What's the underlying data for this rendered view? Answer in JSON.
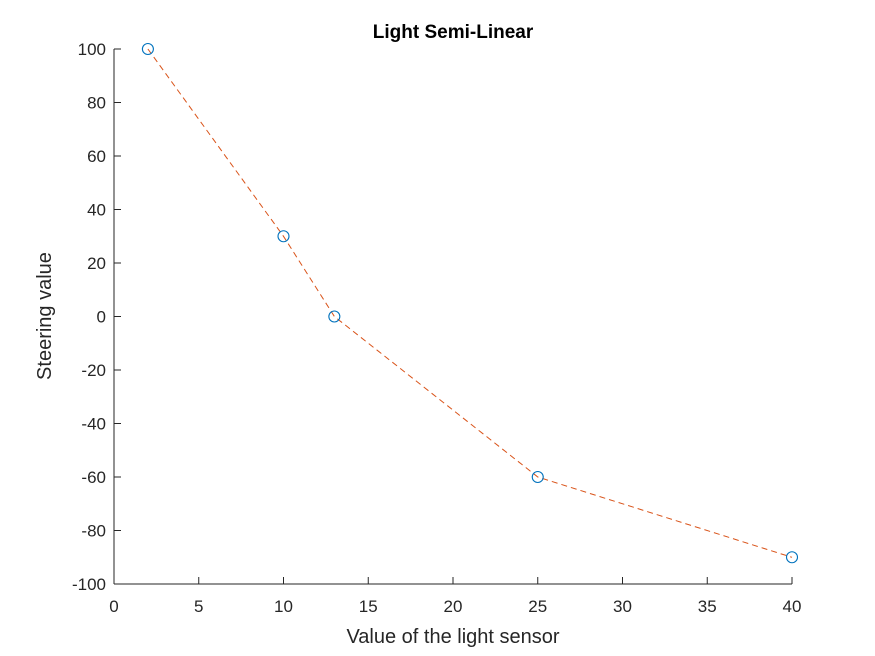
{
  "chart_data": {
    "type": "line",
    "title": "Light Semi-Linear",
    "xlabel": "Value of the light sensor",
    "ylabel": "Steering value",
    "xlim": [
      0,
      40
    ],
    "ylim": [
      -100,
      100
    ],
    "xticks": [
      0,
      5,
      10,
      15,
      20,
      25,
      30,
      35,
      40
    ],
    "yticks": [
      -100,
      -80,
      -60,
      -40,
      -20,
      0,
      20,
      40,
      60,
      80,
      100
    ],
    "grid": false,
    "series": [
      {
        "x": [
          2,
          10,
          13,
          25,
          40
        ],
        "y": [
          100,
          30,
          0,
          -60,
          -90
        ],
        "marker": "circle",
        "marker_color": "#0072BD",
        "line_style": "dashed",
        "line_color": "#D95319"
      }
    ]
  }
}
